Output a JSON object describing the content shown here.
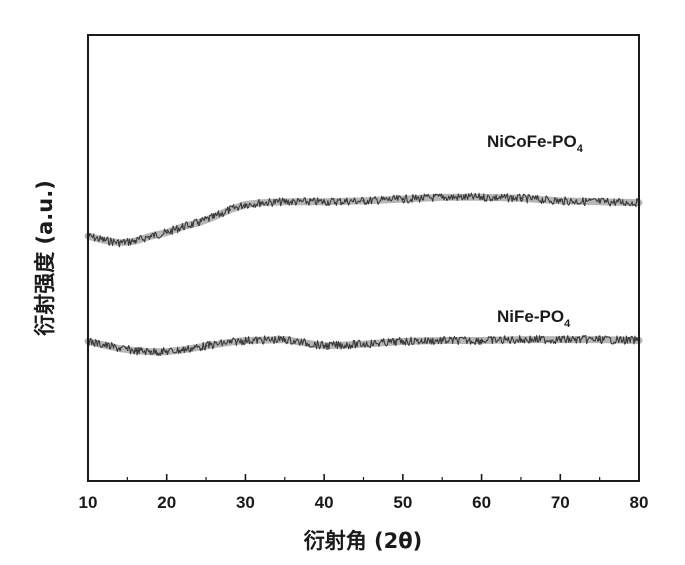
{
  "chart_data": {
    "type": "line",
    "title": "",
    "xlabel": "衍射角 (2θ)",
    "ylabel": "衍射强度 (a.u.)",
    "xlim": [
      10,
      80
    ],
    "ylim": [
      0,
      100
    ],
    "x_ticks": [
      "10",
      "20",
      "30",
      "40",
      "50",
      "60",
      "70",
      "80"
    ],
    "y_ticks": [],
    "grid": false,
    "legend": "none",
    "series": [
      {
        "name": "NiCoFe-PO",
        "name_subscript": "4",
        "color": "#3a3a3a",
        "x": [
          10,
          12,
          14,
          16,
          18,
          20,
          22,
          24,
          26,
          28,
          30,
          32,
          35,
          40,
          45,
          50,
          55,
          60,
          65,
          70,
          75,
          80
        ],
        "y": [
          54.9,
          54.0,
          53.4,
          53.8,
          54.9,
          55.7,
          57.0,
          57.9,
          59.2,
          60.8,
          62.0,
          62.4,
          62.6,
          62.6,
          62.8,
          63.2,
          63.6,
          63.6,
          63.4,
          62.8,
          62.6,
          62.4
        ]
      },
      {
        "name": "NiFe-PO",
        "name_subscript": "4",
        "color": "#3a3a3a",
        "x": [
          10,
          12,
          14,
          16,
          18,
          20,
          22,
          25,
          28,
          30,
          35,
          40,
          45,
          50,
          55,
          60,
          65,
          70,
          75,
          80
        ],
        "y": [
          31.3,
          30.5,
          29.7,
          29.2,
          29.0,
          29.0,
          29.4,
          30.3,
          31.1,
          31.5,
          31.7,
          30.3,
          30.7,
          31.3,
          31.5,
          31.5,
          31.7,
          31.7,
          31.7,
          31.5
        ]
      }
    ]
  }
}
